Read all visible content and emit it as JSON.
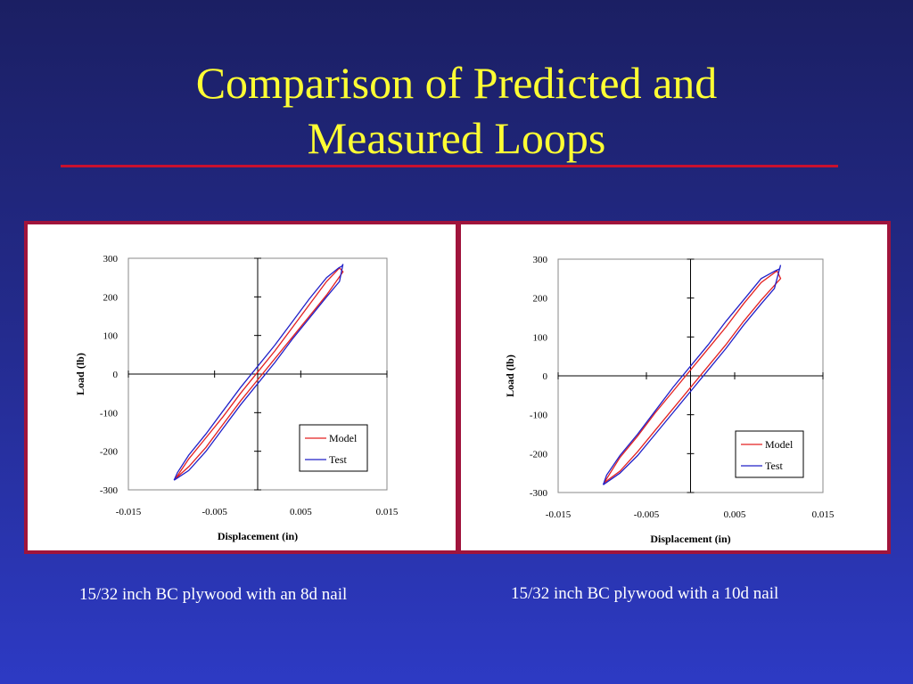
{
  "slide": {
    "title_line1": "Comparison of Predicted and",
    "title_line2": "Measured Loops",
    "accent_color": "#c8102e",
    "title_color": "#ffff33"
  },
  "captions": {
    "left": "15/32 inch BC plywood with an 8d nail",
    "right": "15/32 inch BC plywood with a 10d nail"
  },
  "chart_data": [
    {
      "type": "line",
      "title": "",
      "xlabel": "Displacement (in)",
      "ylabel": "Load (lb)",
      "xlim": [
        -0.015,
        0.015
      ],
      "ylim": [
        -300,
        300
      ],
      "xticks": [
        "-0.015",
        "-0.005",
        "0.005",
        "0.015"
      ],
      "yticks": [
        "300",
        "200",
        "100",
        "0",
        "-100",
        "-200",
        "-300"
      ],
      "grid": false,
      "legend": "lower-right",
      "series": [
        {
          "name": "Model",
          "color": "#e32020",
          "x": [
            -0.0095,
            -0.008,
            -0.006,
            -0.004,
            -0.002,
            0.0,
            0.002,
            0.004,
            0.006,
            0.008,
            0.0099,
            0.0095,
            0.008,
            0.006,
            0.004,
            0.002,
            0.0,
            -0.002,
            -0.004,
            -0.006,
            -0.008,
            -0.0095
          ],
          "y": [
            -270,
            -240,
            -190,
            -130,
            -70,
            -15,
            40,
            95,
            150,
            205,
            265,
            275,
            240,
            180,
            120,
            60,
            5,
            -50,
            -110,
            -165,
            -220,
            -270
          ]
        },
        {
          "name": "Test",
          "color": "#2020c8",
          "x": [
            -0.0097,
            -0.008,
            -0.006,
            -0.004,
            -0.002,
            0.0,
            0.002,
            0.004,
            0.006,
            0.008,
            0.0095,
            0.0099,
            0.0098,
            0.0094,
            0.008,
            0.006,
            0.004,
            0.002,
            0.0,
            -0.002,
            -0.004,
            -0.006,
            -0.008,
            -0.0093,
            -0.0097
          ],
          "y": [
            -275,
            -250,
            -200,
            -140,
            -80,
            -25,
            30,
            90,
            145,
            200,
            240,
            285,
            280,
            275,
            250,
            195,
            135,
            75,
            20,
            -35,
            -95,
            -155,
            -210,
            -255,
            -275
          ]
        }
      ]
    },
    {
      "type": "line",
      "title": "",
      "xlabel": "Displacement (in)",
      "ylabel": "Load (lb)",
      "xlim": [
        -0.015,
        0.015
      ],
      "ylim": [
        -300,
        300
      ],
      "xticks": [
        "-0.015",
        "-0.005",
        "0.005",
        "0.015"
      ],
      "yticks": [
        "300",
        "200",
        "100",
        "0",
        "-100",
        "-200",
        "-300"
      ],
      "grid": false,
      "legend": "lower-right",
      "series": [
        {
          "name": "Model",
          "color": "#e32020",
          "x": [
            -0.0098,
            -0.008,
            -0.006,
            -0.004,
            -0.002,
            0.0,
            0.002,
            0.004,
            0.006,
            0.008,
            0.0102,
            0.0098,
            0.008,
            0.006,
            0.004,
            0.002,
            0.0,
            -0.002,
            -0.004,
            -0.006,
            -0.008,
            -0.0098
          ],
          "y": [
            -275,
            -245,
            -195,
            -140,
            -85,
            -30,
            25,
            80,
            140,
            195,
            250,
            270,
            240,
            185,
            125,
            70,
            15,
            -40,
            -95,
            -155,
            -210,
            -275
          ]
        },
        {
          "name": "Test",
          "color": "#2020c8",
          "x": [
            -0.0099,
            -0.008,
            -0.006,
            -0.004,
            -0.002,
            0.0,
            0.002,
            0.004,
            0.006,
            0.008,
            0.0095,
            0.0102,
            0.0101,
            0.0096,
            0.008,
            0.006,
            0.004,
            0.002,
            0.0,
            -0.002,
            -0.004,
            -0.006,
            -0.008,
            -0.0095,
            -0.0099
          ],
          "y": [
            -280,
            -250,
            -205,
            -150,
            -95,
            -40,
            15,
            70,
            130,
            185,
            225,
            285,
            275,
            270,
            250,
            195,
            140,
            80,
            25,
            -30,
            -90,
            -150,
            -205,
            -255,
            -280
          ]
        }
      ]
    }
  ]
}
